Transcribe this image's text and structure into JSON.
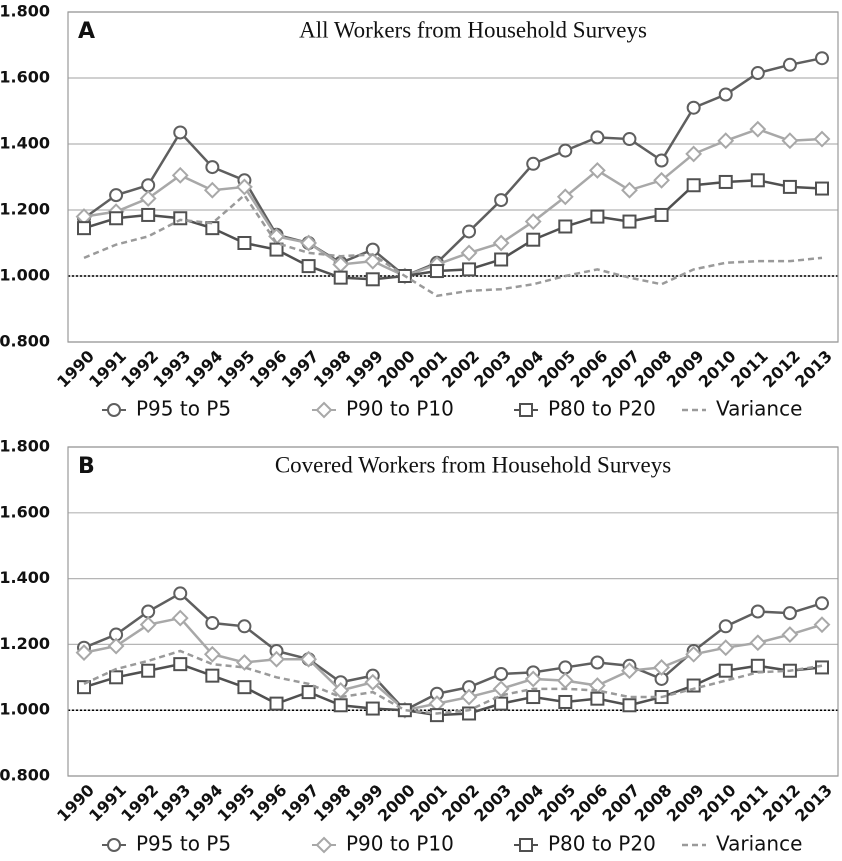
{
  "chart_data": [
    {
      "type": "line",
      "panel": "A",
      "title": "All Workers from Household Surveys",
      "categories": [
        "1990",
        "1991",
        "1992",
        "1993",
        "1994",
        "1995",
        "1996",
        "1997",
        "1998",
        "1999",
        "2000",
        "2001",
        "2002",
        "2003",
        "2004",
        "2005",
        "2006",
        "2007",
        "2008",
        "2009",
        "2010",
        "2011",
        "2012",
        "2013"
      ],
      "ylim": [
        0.8,
        1.8
      ],
      "yticks": [
        {
          "value": 0.8,
          "label": "0.800"
        },
        {
          "value": 1.0,
          "label": "1.000"
        },
        {
          "value": 1.2,
          "label": "1.200"
        },
        {
          "value": 1.4,
          "label": "1.400"
        },
        {
          "value": 1.6,
          "label": "1.600"
        },
        {
          "value": 1.8,
          "label": "1.800"
        }
      ],
      "grid": true,
      "reference_line": 1.0,
      "series": [
        {
          "name": "P95 to P5",
          "color": "#5f5f5f",
          "marker": "circle",
          "values": [
            1.175,
            1.245,
            1.275,
            1.435,
            1.33,
            1.29,
            1.125,
            1.1,
            1.04,
            1.08,
            1.0,
            1.04,
            1.135,
            1.23,
            1.34,
            1.38,
            1.42,
            1.415,
            1.35,
            1.51,
            1.55,
            1.615,
            1.64,
            1.66
          ]
        },
        {
          "name": "P90 to P10",
          "color": "#a8a8a8",
          "marker": "diamond",
          "values": [
            1.18,
            1.195,
            1.235,
            1.305,
            1.26,
            1.27,
            1.12,
            1.1,
            1.035,
            1.045,
            1.0,
            1.035,
            1.07,
            1.1,
            1.165,
            1.24,
            1.32,
            1.26,
            1.29,
            1.37,
            1.41,
            1.445,
            1.41,
            1.415
          ]
        },
        {
          "name": "P80 to P20",
          "color": "#505050",
          "marker": "square",
          "values": [
            1.145,
            1.175,
            1.185,
            1.175,
            1.145,
            1.1,
            1.08,
            1.03,
            0.995,
            0.99,
            1.0,
            1.015,
            1.02,
            1.05,
            1.11,
            1.15,
            1.18,
            1.165,
            1.185,
            1.275,
            1.285,
            1.29,
            1.27,
            1.265
          ]
        },
        {
          "name": "Variance",
          "color": "#9a9a9a",
          "marker": "dash",
          "values": [
            1.055,
            1.095,
            1.12,
            1.17,
            1.16,
            1.245,
            1.1,
            1.07,
            1.06,
            1.065,
            1.0,
            0.94,
            0.955,
            0.96,
            0.975,
            1.0,
            1.02,
            0.995,
            0.975,
            1.02,
            1.04,
            1.045,
            1.045,
            1.055
          ]
        }
      ]
    },
    {
      "type": "line",
      "panel": "B",
      "title": "Covered Workers from Household Surveys",
      "categories": [
        "1990",
        "1991",
        "1992",
        "1993",
        "1994",
        "1995",
        "1996",
        "1997",
        "1998",
        "1999",
        "2000",
        "2001",
        "2002",
        "2003",
        "2004",
        "2005",
        "2006",
        "2007",
        "2008",
        "2009",
        "2010",
        "2011",
        "2012",
        "2013"
      ],
      "ylim": [
        0.8,
        1.8
      ],
      "yticks": [
        {
          "value": 0.8,
          "label": "0.800"
        },
        {
          "value": 1.0,
          "label": "1.000"
        },
        {
          "value": 1.2,
          "label": "1.200"
        },
        {
          "value": 1.4,
          "label": "1.400"
        },
        {
          "value": 1.6,
          "label": "1.600"
        },
        {
          "value": 1.8,
          "label": "1.800"
        }
      ],
      "grid": true,
      "reference_line": 1.0,
      "series": [
        {
          "name": "P95 to P5",
          "color": "#5f5f5f",
          "marker": "circle",
          "values": [
            1.19,
            1.23,
            1.3,
            1.355,
            1.265,
            1.255,
            1.18,
            1.155,
            1.085,
            1.105,
            1.0,
            1.05,
            1.07,
            1.11,
            1.115,
            1.13,
            1.145,
            1.135,
            1.095,
            1.18,
            1.255,
            1.3,
            1.295,
            1.325
          ]
        },
        {
          "name": "P90 to P10",
          "color": "#a8a8a8",
          "marker": "diamond",
          "values": [
            1.175,
            1.195,
            1.26,
            1.28,
            1.17,
            1.145,
            1.155,
            1.155,
            1.06,
            1.085,
            1.0,
            1.02,
            1.04,
            1.065,
            1.095,
            1.09,
            1.075,
            1.12,
            1.13,
            1.17,
            1.19,
            1.205,
            1.23,
            1.26
          ]
        },
        {
          "name": "P80 to P20",
          "color": "#505050",
          "marker": "square",
          "values": [
            1.07,
            1.1,
            1.12,
            1.14,
            1.105,
            1.07,
            1.02,
            1.055,
            1.015,
            1.005,
            1.0,
            0.985,
            0.99,
            1.02,
            1.04,
            1.025,
            1.035,
            1.015,
            1.04,
            1.075,
            1.12,
            1.135,
            1.12,
            1.13
          ]
        },
        {
          "name": "Variance",
          "color": "#9a9a9a",
          "marker": "dash",
          "values": [
            1.08,
            1.125,
            1.15,
            1.18,
            1.14,
            1.13,
            1.1,
            1.08,
            1.04,
            1.055,
            1.0,
            0.99,
            1.0,
            1.045,
            1.065,
            1.065,
            1.06,
            1.04,
            1.04,
            1.065,
            1.09,
            1.115,
            1.12,
            1.135
          ]
        }
      ]
    }
  ]
}
